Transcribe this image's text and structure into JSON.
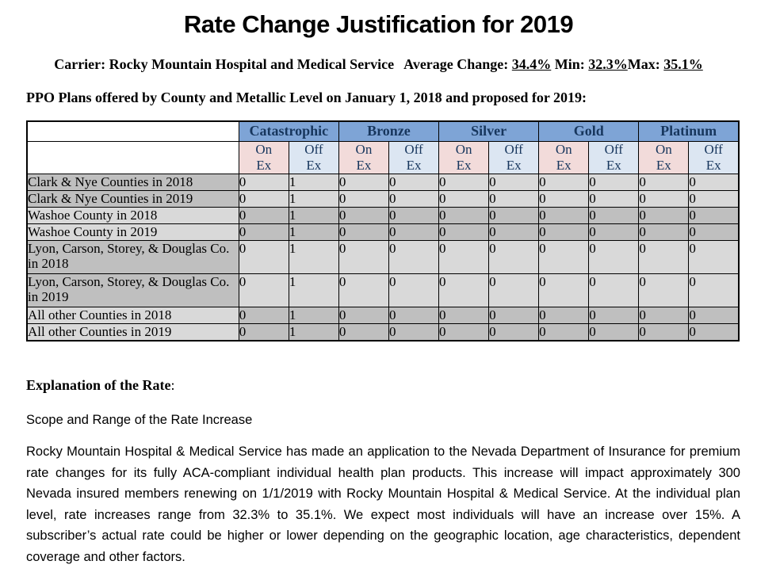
{
  "title": "Rate Change Justification for 2019",
  "carrier": {
    "label": "Carrier:",
    "name": "Rocky Mountain Hospital and Medical Service"
  },
  "stats": {
    "average_label": "Average Change:",
    "average_value": "34.4%",
    "min_label": "Min:",
    "min_value": "32.3%",
    "max_label": "Max:",
    "max_value": "35.1%"
  },
  "table_caption": "PPO Plans offered by County and Metallic Level on January 1, 2018 and proposed for 2019:",
  "plan_table": {
    "metal_levels": [
      "Catastrophic",
      "Bronze",
      "Silver",
      "Gold",
      "Platinum"
    ],
    "on_ex_label": "On\nEx",
    "off_ex_label": "Off\nEx",
    "rows": [
      {
        "label": "Clark & Nye Counties in 2018",
        "values": [
          "0",
          "1",
          "0",
          "0",
          "0",
          "0",
          "0",
          "0",
          "0",
          "0"
        ]
      },
      {
        "label": "Clark & Nye Counties in 2019",
        "values": [
          "0",
          "1",
          "0",
          "0",
          "0",
          "0",
          "0",
          "0",
          "0",
          "0"
        ]
      },
      {
        "label": "Washoe County in 2018",
        "values": [
          "0",
          "1",
          "0",
          "0",
          "0",
          "0",
          "0",
          "0",
          "0",
          "0"
        ]
      },
      {
        "label": "Washoe County in 2019",
        "values": [
          "0",
          "1",
          "0",
          "0",
          "0",
          "0",
          "0",
          "0",
          "0",
          "0"
        ]
      },
      {
        "label": "Lyon, Carson, Storey, & Douglas Co. in 2018",
        "values": [
          "0",
          "1",
          "0",
          "0",
          "0",
          "0",
          "0",
          "0",
          "0",
          "0"
        ]
      },
      {
        "label": "Lyon, Carson, Storey, & Douglas Co. in 2019",
        "values": [
          "0",
          "1",
          "0",
          "0",
          "0",
          "0",
          "0",
          "0",
          "0",
          "0"
        ]
      },
      {
        "label": "All other Counties in 2018",
        "values": [
          "0",
          "1",
          "0",
          "0",
          "0",
          "0",
          "0",
          "0",
          "0",
          "0"
        ]
      },
      {
        "label": "All other Counties in 2019",
        "values": [
          "0",
          "1",
          "0",
          "0",
          "0",
          "0",
          "0",
          "0",
          "0",
          "0"
        ]
      }
    ]
  },
  "explanation": {
    "heading": "Explanation of the Rate",
    "heading_colon": ":",
    "subheading": "Scope and Range of the Rate Increase",
    "paragraph": "Rocky Mountain Hospital & Medical Service has made an application to the Nevada Department of Insurance for premium rate changes for its fully ACA-compliant individual health plan products. This increase will impact approximately 300 Nevada insured members renewing on 1/1/2019 with Rocky Mountain Hospital & Medical Service.  At the individual plan level, rate increases range from 32.3% to 35.1%.  We expect most individuals will have an increase over 15%.  A subscriber’s actual rate could be higher or lower depending on the geographic location, age characteristics, dependent coverage and other factors."
  },
  "colors": {
    "metal_header_blue": "#7EA4D6",
    "on_ex_pink": "#F2DBDA",
    "off_ex_blue": "#DCE6F2",
    "row_shade_dark": "#BFBFBF",
    "row_shade_light": "#D9D9D9",
    "header_text_navy": "#17365D"
  }
}
